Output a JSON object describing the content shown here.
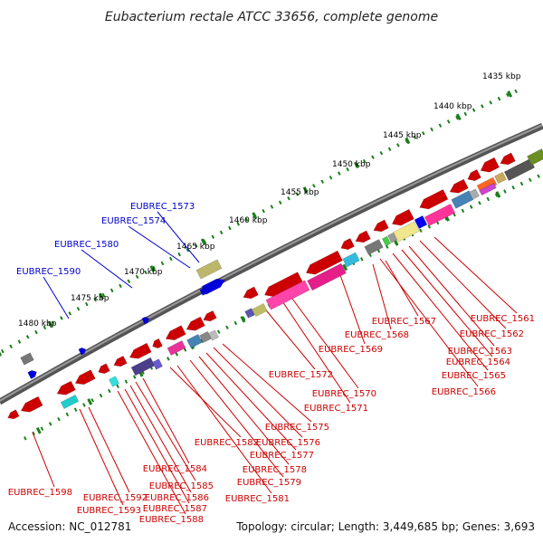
{
  "title": "Eubacterium rectale ATCC 33656, complete genome",
  "footer": {
    "accession": "Accession: NC_012781",
    "summary": "Topology: circular; Length: 3,449,685 bp; Genes: 3,693"
  },
  "scale_labels": [
    "1435 kbp",
    "1440 kbp",
    "1445 kbp",
    "1450 kbp",
    "1455 kbp",
    "1460 kbp",
    "1465 kbp",
    "1470 kbp",
    "1475 kbp",
    "1480 kbp"
  ],
  "colors": {
    "reverse_gene": "#cc0000",
    "forward_gene": "#0000cc",
    "backbone": "#808080",
    "tick": "#1a7f1a"
  },
  "top_labels": [
    "EUBREC_1573",
    "EUBREC_1574",
    "EUBREC_1580",
    "EUBREC_1590"
  ],
  "bottom_labels": [
    "EUBREC_1561",
    "EUBREC_1562",
    "EUBREC_1563",
    "EUBREC_1564",
    "EUBREC_1565",
    "EUBREC_1566",
    "EUBREC_1567",
    "EUBREC_1568",
    "EUBREC_1569",
    "EUBREC_1570",
    "EUBREC_1571",
    "EUBREC_1572",
    "EUBREC_1575",
    "EUBREC_1576",
    "EUBREC_1577",
    "EUBREC_1578",
    "EUBREC_1579",
    "EUBREC_1581",
    "EUBREC_1582",
    "EUBREC_1584",
    "EUBREC_1585",
    "EUBREC_1586",
    "EUBREC_1587",
    "EUBREC_1588",
    "EUBREC_1592",
    "EUBREC_1593",
    "EUBREC_1598"
  ]
}
